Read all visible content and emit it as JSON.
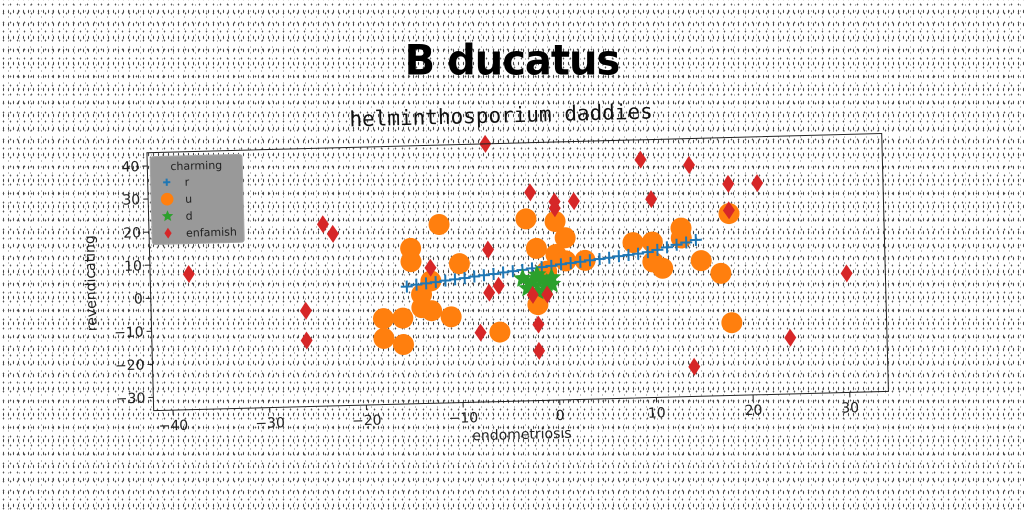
{
  "suptitle": "B ducatus",
  "chart_data": {
    "type": "scatter",
    "title": "helminthosporium daddies",
    "xlabel": "endometriosis",
    "ylabel": "revendicating",
    "xlim": [
      -42,
      34
    ],
    "ylim": [
      -34,
      44
    ],
    "xticks": [
      -40,
      -30,
      -20,
      -10,
      0,
      10,
      20,
      30
    ],
    "yticks": [
      -30,
      -20,
      -10,
      0,
      10,
      20,
      30,
      40
    ],
    "xtick_labels": [
      "−40",
      "−30",
      "−20",
      "−10",
      "0",
      "10",
      "20",
      "30"
    ],
    "ytick_labels": [
      "−30",
      "−20",
      "−10",
      "0",
      "10",
      "20",
      "30",
      "40"
    ],
    "grid": false,
    "legend": {
      "title": "charming",
      "placement": "top-left"
    },
    "series": [
      {
        "name": "r",
        "marker": "plus",
        "color": "#1f77b4",
        "points": [
          [
            -15.5,
            1.5
          ],
          [
            -14.5,
            2.0
          ],
          [
            -13.5,
            2.3
          ],
          [
            -12.5,
            2.6
          ],
          [
            -11.5,
            3.0
          ],
          [
            -10.5,
            3.3
          ],
          [
            -9.5,
            3.6
          ],
          [
            -8.5,
            4.0
          ],
          [
            -7.5,
            4.3
          ],
          [
            -6.5,
            4.6
          ],
          [
            -5.5,
            5.0
          ],
          [
            -4.5,
            5.3
          ],
          [
            -3.5,
            5.6
          ],
          [
            -2.5,
            6.0
          ],
          [
            -1.5,
            6.3
          ],
          [
            -0.5,
            6.6
          ],
          [
            0.5,
            7.0
          ],
          [
            1.5,
            7.3
          ],
          [
            2.5,
            7.6
          ],
          [
            3.5,
            8.0
          ],
          [
            4.5,
            8.3
          ],
          [
            5.5,
            8.6
          ],
          [
            6.5,
            9.0
          ],
          [
            7.5,
            9.3
          ],
          [
            8.5,
            9.6
          ],
          [
            9.5,
            10.0
          ],
          [
            10.5,
            10.6
          ],
          [
            11.5,
            11.3
          ],
          [
            12.5,
            12.0
          ],
          [
            13.5,
            12.6
          ],
          [
            14.5,
            13.3
          ]
        ]
      },
      {
        "name": "u",
        "marker": "circle",
        "color": "#ff7f0e",
        "points": [
          [
            -12,
            20
          ],
          [
            -15,
            13
          ],
          [
            -15,
            9
          ],
          [
            -10,
            8
          ],
          [
            -13,
            3
          ],
          [
            -14,
            -1
          ],
          [
            -14,
            -5
          ],
          [
            -16,
            -8
          ],
          [
            -18,
            -8
          ],
          [
            -13,
            -6
          ],
          [
            -11,
            -8
          ],
          [
            -16,
            -16
          ],
          [
            -18,
            -14
          ],
          [
            -6,
            -13
          ],
          [
            -3,
            21
          ],
          [
            -2,
            12
          ],
          [
            -1,
            5
          ],
          [
            0,
            20
          ],
          [
            1,
            15
          ],
          [
            0,
            10
          ],
          [
            1,
            8
          ],
          [
            3,
            8
          ],
          [
            -2,
            -5
          ],
          [
            8,
            13
          ],
          [
            10,
            13
          ],
          [
            13,
            14
          ],
          [
            13,
            17
          ],
          [
            10,
            7
          ],
          [
            11,
            5
          ],
          [
            15,
            7
          ],
          [
            17,
            3
          ],
          [
            18,
            -12
          ],
          [
            18,
            21
          ]
        ]
      },
      {
        "name": "d",
        "marker": "star",
        "color": "#2ca02c",
        "points": [
          [
            -3.5,
            3
          ],
          [
            -2.5,
            2
          ],
          [
            -2,
            4
          ],
          [
            -1.5,
            2.5
          ],
          [
            -1,
            1.5
          ],
          [
            -0.5,
            3
          ],
          [
            -3,
            0
          ],
          [
            -2,
            -1
          ],
          [
            -1,
            0
          ],
          [
            -0.5,
            1
          ]
        ]
      },
      {
        "name": "enfamish",
        "marker": "diamond",
        "color": "#d62728",
        "points": [
          [
            -38,
            7
          ],
          [
            -24,
            21
          ],
          [
            -23,
            18
          ],
          [
            -26,
            -5
          ],
          [
            -26,
            -14
          ],
          [
            -13,
            7
          ],
          [
            -7,
            44
          ],
          [
            -7,
            12
          ],
          [
            -7,
            -1
          ],
          [
            -6,
            1
          ],
          [
            -8,
            -13
          ],
          [
            -2.5,
            29
          ],
          [
            -2.5,
            -2
          ],
          [
            -2,
            -11
          ],
          [
            -2,
            -19
          ],
          [
            -1,
            -2
          ],
          [
            0,
            26
          ],
          [
            0,
            24
          ],
          [
            2,
            26
          ],
          [
            9,
            38
          ],
          [
            10,
            26
          ],
          [
            14,
            36
          ],
          [
            14,
            -25
          ],
          [
            18,
            30
          ],
          [
            18,
            22
          ],
          [
            21,
            30
          ],
          [
            24,
            -17
          ],
          [
            30,
            2
          ]
        ]
      }
    ]
  }
}
